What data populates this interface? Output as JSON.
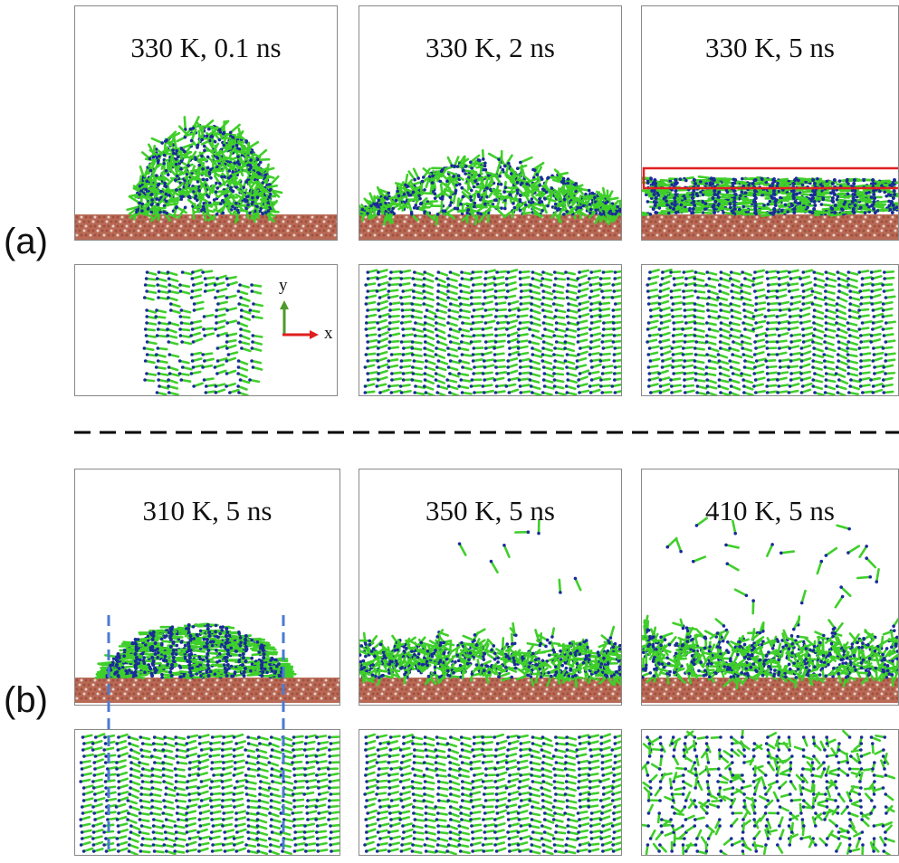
{
  "labels": {
    "a": "(a)",
    "b": "(b)"
  },
  "axes": {
    "y": "y",
    "x": "x"
  },
  "panels_a": [
    {
      "title": "330 K, 0.1 ns"
    },
    {
      "title": "330 K, 2 ns"
    },
    {
      "title": "330 K, 5 ns"
    }
  ],
  "panels_b": [
    {
      "title": "310 K, 5 ns"
    },
    {
      "title": "350 K, 5 ns"
    },
    {
      "title": "410 K, 5 ns"
    }
  ],
  "colors": {
    "molecule": "#3fcf2a",
    "headgroup": "#1a2a9a",
    "substrate": "#b86a56",
    "highlight_box": "#e02020",
    "guide_line": "#4a7bd0",
    "divider": "#000000"
  }
}
